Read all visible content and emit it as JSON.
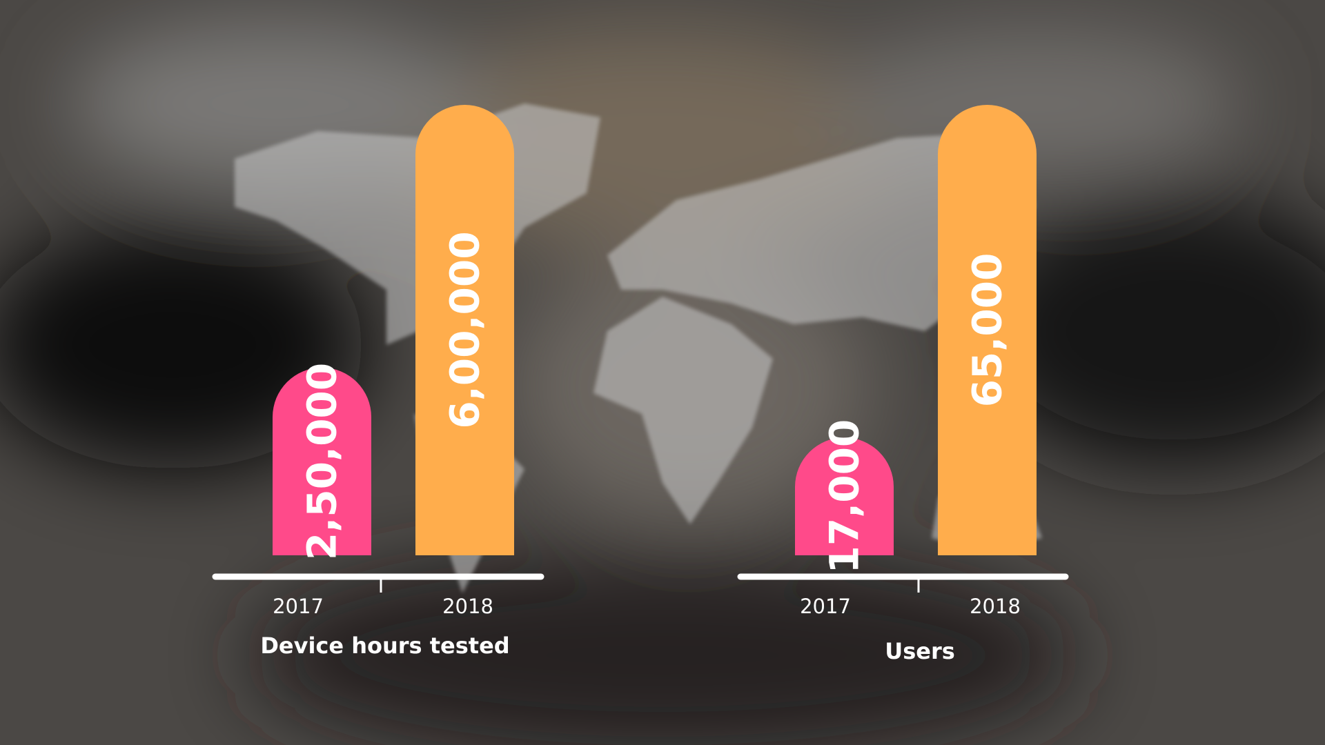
{
  "chart_data": [
    {
      "type": "bar",
      "title": "Device hours tested",
      "categories": [
        "2017",
        "2018"
      ],
      "values": [
        250000,
        600000
      ],
      "value_labels": [
        "2,50,000",
        "6,00,000"
      ],
      "colors": [
        "#ff4a8a",
        "#ffad4c"
      ]
    },
    {
      "type": "bar",
      "title": "Users",
      "categories": [
        "2017",
        "2018"
      ],
      "values": [
        17000,
        65000
      ],
      "value_labels": [
        "17,000",
        "65,000"
      ],
      "colors": [
        "#ff4a8a",
        "#ffad4c"
      ]
    }
  ]
}
